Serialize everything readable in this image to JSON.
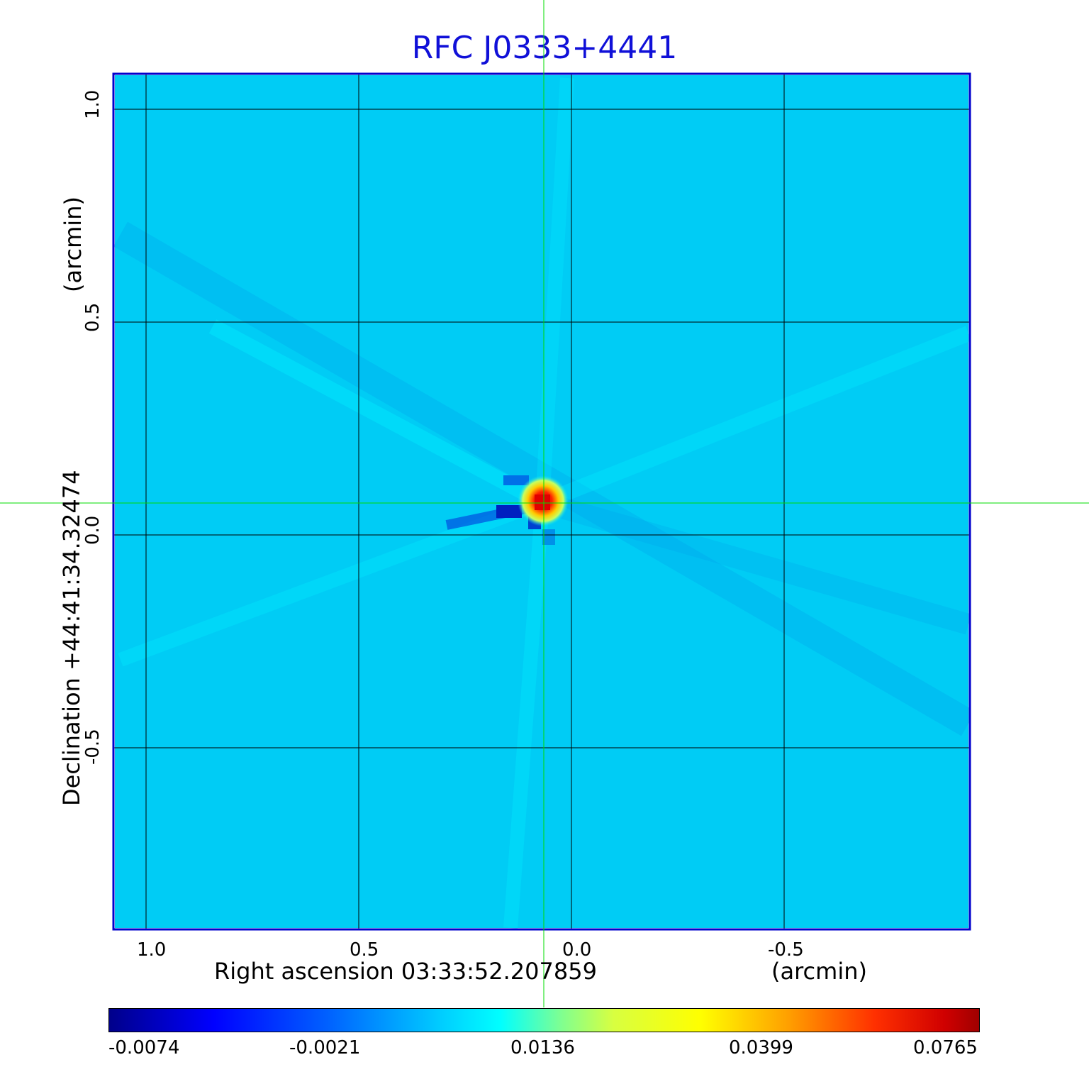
{
  "title": "RFC J0333+4441",
  "xaxis": {
    "label": "Right ascension  03:33:52.207859",
    "unit": "(arcmin)",
    "ticks": [
      "1.0",
      "0.5",
      "0.0",
      "-0.5"
    ]
  },
  "yaxis": {
    "label": "Declination  +44:41:34.32474",
    "unit": "(arcmin)",
    "ticks": [
      "1.0",
      "0.5",
      "0.0",
      "-0.5"
    ]
  },
  "colorbar": {
    "ticks": [
      "-0.0074",
      "-0.0021",
      "0.0136",
      "0.0399",
      "0.0765"
    ],
    "colormap": "jet"
  },
  "colors": {
    "title": "#1010d8",
    "frame": "#0000cc",
    "crosshair": "#00dd00",
    "background_field": "#00ccff"
  }
}
